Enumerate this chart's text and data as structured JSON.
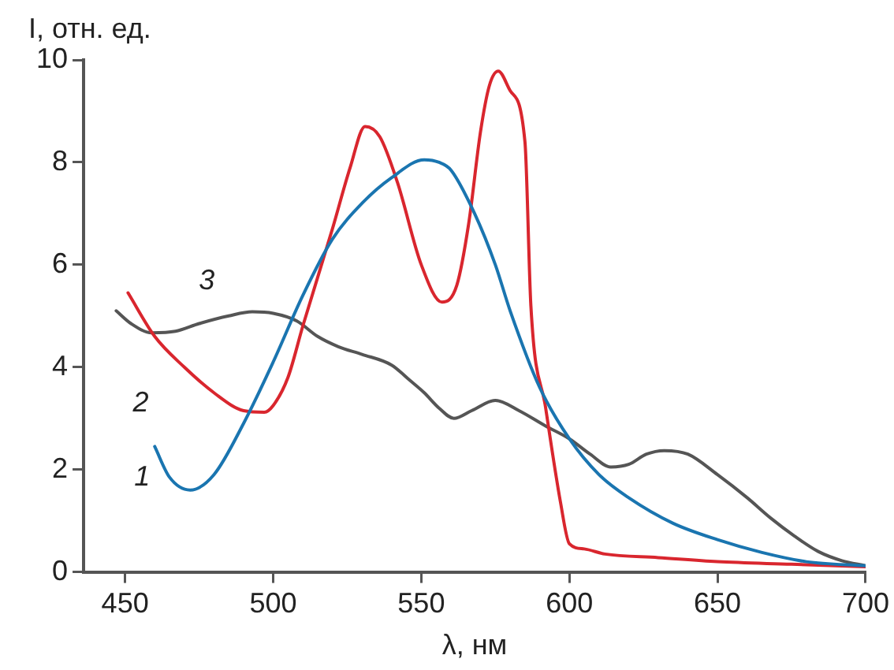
{
  "chart_data": {
    "type": "line",
    "xlabel": "λ, нм",
    "ylabel": "I, отн. ед.",
    "xlim": [
      436,
      700
    ],
    "xticks": [
      450,
      500,
      550,
      600,
      650,
      700
    ],
    "ylim": [
      0,
      10
    ],
    "yticks": [
      0,
      2,
      4,
      6,
      8,
      10
    ],
    "grid": false,
    "legend": false,
    "marker": "none",
    "line_style": "solid",
    "series": [
      {
        "name": "1",
        "color": "#1a75b0",
        "x": [
          460,
          465,
          472,
          480,
          490,
          500,
          510,
          520,
          530,
          540,
          551,
          556,
          560,
          568,
          575,
          580,
          590,
          600,
          610,
          620,
          635,
          650,
          665,
          680,
          700
        ],
        "values": [
          2.45,
          1.85,
          1.6,
          1.9,
          2.9,
          4.1,
          5.4,
          6.5,
          7.2,
          7.7,
          8.05,
          8.0,
          7.85,
          7.0,
          6.0,
          5.1,
          3.6,
          2.6,
          1.9,
          1.45,
          0.95,
          0.63,
          0.38,
          0.2,
          0.12
        ]
      },
      {
        "name": "2",
        "color": "#d9262e",
        "x": [
          451,
          460,
          470,
          480,
          490,
          497,
          500,
          505,
          510,
          520,
          526,
          531,
          536,
          542,
          550,
          557,
          562,
          566,
          570,
          573,
          576,
          580,
          585,
          587,
          592,
          597,
          600,
          605,
          612,
          630,
          650,
          675,
          700
        ],
        "values": [
          5.45,
          4.6,
          4.0,
          3.5,
          3.15,
          3.12,
          3.25,
          3.8,
          4.8,
          6.7,
          7.9,
          8.7,
          8.5,
          7.6,
          6.0,
          5.27,
          5.6,
          6.8,
          8.6,
          9.5,
          9.78,
          9.4,
          8.4,
          5.2,
          3.2,
          1.36,
          0.55,
          0.45,
          0.35,
          0.28,
          0.2,
          0.15,
          0.1
        ]
      },
      {
        "name": "3",
        "color": "#555555",
        "x": [
          447,
          452,
          459,
          467,
          475,
          485,
          493,
          500,
          508,
          515,
          522,
          530,
          540,
          546,
          551,
          556,
          561,
          567,
          575,
          583,
          592,
          600,
          607,
          614,
          620,
          626,
          632,
          640,
          650,
          660,
          668,
          676,
          684,
          692,
          700
        ],
        "values": [
          5.1,
          4.85,
          4.67,
          4.7,
          4.85,
          5.0,
          5.08,
          5.05,
          4.9,
          4.6,
          4.4,
          4.25,
          4.04,
          3.75,
          3.5,
          3.2,
          3.0,
          3.15,
          3.35,
          3.15,
          2.85,
          2.6,
          2.3,
          2.05,
          2.1,
          2.3,
          2.37,
          2.3,
          1.9,
          1.45,
          1.05,
          0.7,
          0.4,
          0.22,
          0.12
        ]
      }
    ]
  }
}
